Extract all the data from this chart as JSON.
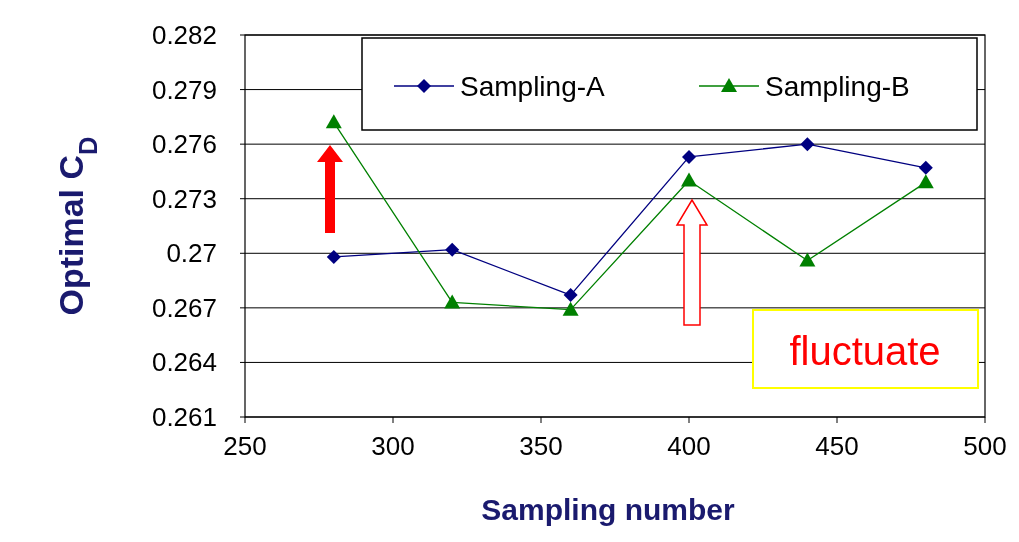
{
  "chart_data": {
    "type": "line",
    "xlabel": "Sampling number",
    "ylabel": "Optimal C$_{D}$",
    "x": [
      280,
      320,
      360,
      400,
      440,
      480
    ],
    "series": [
      {
        "name": "Sampling-A",
        "color": "#000080",
        "marker": "diamond",
        "values": [
          0.2698,
          0.2702,
          0.2677,
          0.2753,
          0.276,
          0.2747
        ]
      },
      {
        "name": "Sampling-B",
        "color": "#008000",
        "marker": "triangle",
        "values": [
          0.2772,
          0.2673,
          0.2669,
          0.274,
          0.2696,
          0.2739
        ]
      }
    ],
    "xlim": [
      250,
      500
    ],
    "xticks": [
      250,
      300,
      350,
      400,
      450,
      500
    ],
    "ylim": [
      0.261,
      0.282
    ],
    "yticks": [
      0.261,
      0.264,
      0.267,
      0.27,
      0.273,
      0.276,
      0.279,
      0.282
    ],
    "grid": "y",
    "legend": "top right",
    "line_style": "solid",
    "annotations": [
      "fluctuate"
    ]
  }
}
